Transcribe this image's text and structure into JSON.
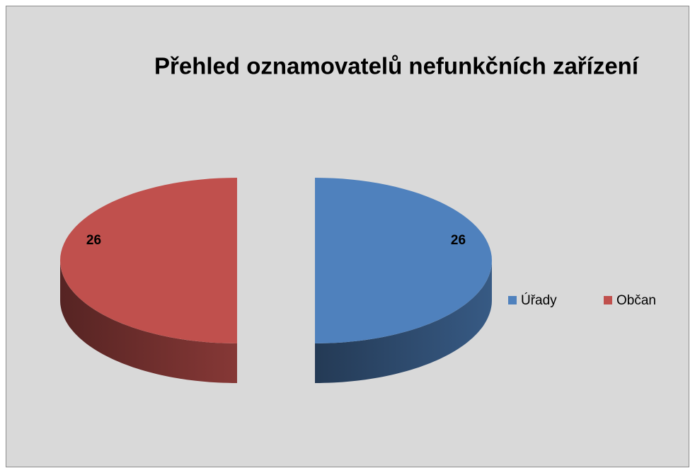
{
  "chart_data": {
    "type": "pie",
    "title": "Přehled oznamovatelů nefunkčních zařízení",
    "categories": [
      "Úřady",
      "Občan"
    ],
    "values": [
      26,
      26
    ],
    "colors": [
      "#4f81bd",
      "#c0504d"
    ],
    "legend": "right"
  }
}
